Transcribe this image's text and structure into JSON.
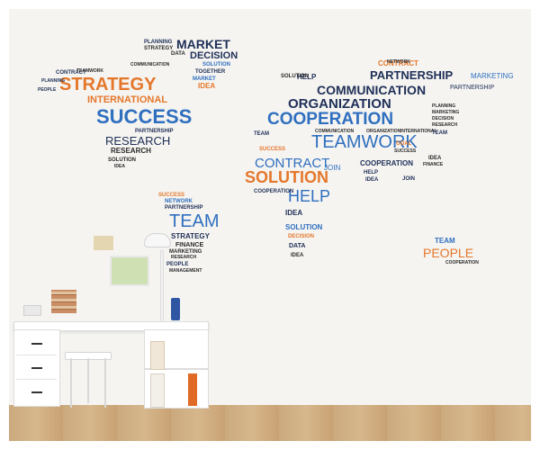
{
  "scene": "white desk against a wall with a world-map made of words",
  "colors": {
    "navy": "#1f2f57",
    "blue": "#2f6fbf",
    "orange": "#e5772b",
    "wall": "#f5f4f1",
    "floor": "#caa97d"
  },
  "map_words": {
    "north_america": [
      "MARKET",
      "DECISION",
      "PLANNING",
      "STRATEGY",
      "DATA",
      "SOLUTION",
      "TOGETHER",
      "MARKET",
      "IDEA",
      "CONTRACT",
      "STRATEGY",
      "INTERNATIONAL",
      "SUCCESS",
      "PARTNERSHIP",
      "RESEARCH",
      "RESEARCH",
      "SOLUTION",
      "IDEA",
      "PEOPLE",
      "TEAMWORK",
      "COMMUNICATION",
      "PLANNING"
    ],
    "south_america": [
      "SUCCESS",
      "NETWORK",
      "PARTNERSHIP",
      "TEAM",
      "STRATEGY",
      "FINANCE",
      "MARKETING",
      "PEOPLE",
      "RESEARCH",
      "MANAGEMENT"
    ],
    "eurasia": [
      "CONTRACT",
      "PARTNERSHIP",
      "MARKETING",
      "PARTNERSHIP",
      "COMMUNICATION",
      "ORGANIZATION",
      "COOPERATION",
      "HELP",
      "TEAMWORK",
      "COMMUNICATION",
      "ORGANIZATION",
      "INTERNATIONAL",
      "CONTRACT",
      "COOPERATION",
      "JOIN",
      "SOLUTION",
      "HELP",
      "IDEA",
      "TEAM",
      "PLANNING",
      "MARKETING",
      "DECISION",
      "RESEARCH",
      "IDEA",
      "GOAL",
      "SUCCESS",
      "FINANCE",
      "JOIN",
      "NETWORK"
    ],
    "africa": [
      "SOLUTION",
      "HELP",
      "IDEA",
      "COOPERATION",
      "SOLUTION",
      "DECISION",
      "DATA",
      "IDEA",
      "SUCCESS",
      "TEAM"
    ],
    "australia": [
      "TEAM",
      "PEOPLE",
      "COOPERATION"
    ]
  }
}
